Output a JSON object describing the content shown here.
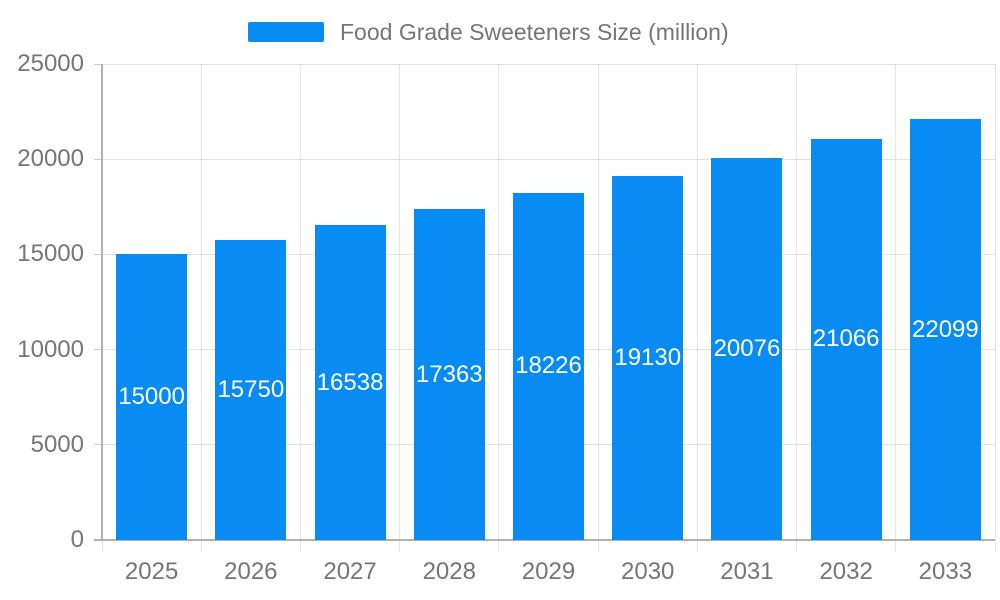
{
  "legend": {
    "label": "Food Grade Sweeteners Size (million)"
  },
  "chart_data": {
    "type": "bar",
    "title": "Food Grade Sweeteners Size (million)",
    "series_name": "Food Grade Sweeteners Size (million)",
    "categories": [
      "2025",
      "2026",
      "2027",
      "2028",
      "2029",
      "2030",
      "2031",
      "2032",
      "2033"
    ],
    "values": [
      15000,
      15750,
      16538,
      17363,
      18226,
      19130,
      20076,
      21066,
      22099
    ],
    "bar_labels": [
      "15000",
      "15750",
      "16538",
      "17363",
      "18226",
      "19130",
      "20076",
      "21066",
      "22099"
    ],
    "xlabel": "",
    "ylabel": "",
    "ylim": [
      0,
      25000
    ],
    "yticks": [
      0,
      5000,
      10000,
      15000,
      20000,
      25000
    ],
    "grid": true,
    "legend_position": "top",
    "colors": {
      "bar": "#088CF4",
      "grid": "#e3e3e3",
      "axis": "#b1b1b1",
      "tick": "#cccccc",
      "axis_text": "#757575",
      "bar_label_text": "#ffffff"
    }
  }
}
